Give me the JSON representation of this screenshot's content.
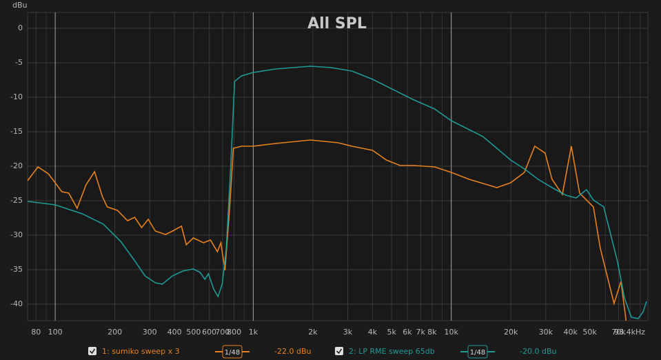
{
  "chart_data": {
    "type": "line",
    "title": "All SPL",
    "y_label": "dBu",
    "xscale": "log",
    "grid": true,
    "xlim": [
      72.5,
      98400
    ],
    "ylim": [
      -42.4,
      2.3
    ],
    "yticks": [
      0,
      -5,
      -10,
      -15,
      -20,
      -25,
      -30,
      -35,
      -40
    ],
    "xticks": [
      80,
      100,
      200,
      300,
      400,
      500,
      600,
      700,
      800,
      {
        "value": 1000,
        "label": "1k"
      },
      {
        "value": 2000,
        "label": "2k"
      },
      {
        "value": 3000,
        "label": "3k"
      },
      {
        "value": 4000,
        "label": "4k"
      },
      {
        "value": 5000,
        "label": "5k"
      },
      {
        "value": 6000,
        "label": "6k"
      },
      {
        "value": 7000,
        "label": "7k"
      },
      {
        "value": 8000,
        "label": "8k"
      },
      {
        "value": 10000,
        "label": "10k"
      },
      {
        "value": 20000,
        "label": "20k"
      },
      {
        "value": 30000,
        "label": "30k"
      },
      {
        "value": 40000,
        "label": "40k"
      },
      {
        "value": 50000,
        "label": "50k"
      },
      {
        "value": 70000,
        "label": "70k"
      },
      {
        "value": 98400,
        "label": "98.4kHz"
      }
    ],
    "x_major_gridlines": [
      100,
      1000,
      10000
    ],
    "x_minor_gridlines": [
      90,
      900,
      9000,
      60000,
      80000,
      90000
    ],
    "series": [
      {
        "name": "1: sumiko sweep x 3",
        "color": "#e8821e",
        "smoothing": "1/48",
        "level_label": "-22.0 dBu",
        "x": [
          72.5,
          81.8,
          92.3,
          100,
          108,
          117,
          129,
          143,
          158,
          173,
          183,
          206,
          232,
          252,
          273,
          295,
          320,
          361,
          391,
          434,
          459,
          498,
          561,
          608,
          659,
          686,
          720,
          761,
          793,
          873,
          1000,
          1303,
          1946,
          2683,
          3148,
          4008,
          4700,
          5522,
          6488,
          8244,
          10000,
          12320,
          16980,
          19940,
          23400,
          26400,
          29790,
          32270,
          36390,
          40390,
          44460,
          52220,
          56570,
          61260,
          66400,
          71950,
          76740
        ],
        "values": [
          -22.1,
          -20.1,
          -21.1,
          -22.4,
          -23.7,
          -23.9,
          -26.1,
          -22.7,
          -20.8,
          -24.4,
          -25.9,
          -26.4,
          -27.9,
          -27.4,
          -28.9,
          -27.7,
          -29.4,
          -29.9,
          -29.4,
          -28.7,
          -31.4,
          -30.4,
          -31.1,
          -30.7,
          -32.4,
          -31.1,
          -35.1,
          -25.9,
          -17.4,
          -17.1,
          -17.1,
          -16.7,
          -16.2,
          -16.6,
          -17.1,
          -17.7,
          -19.1,
          -19.9,
          -19.9,
          -20.1,
          -20.9,
          -21.9,
          -23.1,
          -22.4,
          -20.9,
          -17.1,
          -18.1,
          -21.9,
          -24.1,
          -17.1,
          -23.9,
          -25.9,
          -31.9,
          -35.9,
          -39.9,
          -36.7,
          -42.9
        ]
      },
      {
        "name": "2: LP RME sweep 65db",
        "color": "#1f9a96",
        "smoothing": "1/48",
        "level_label": "-20.0 dBu",
        "x": [
          72.5,
          100,
          137,
          175,
          214,
          252,
          284,
          320,
          347,
          391,
          441,
          498,
          539,
          570,
          594,
          633,
          664,
          697,
          731,
          767,
          805,
          873,
          1000,
          1303,
          1946,
          2476,
          3148,
          4008,
          5096,
          6488,
          8244,
          10000,
          12320,
          14450,
          16980,
          19940,
          23400,
          27480,
          32270,
          37840,
          42730,
          48190,
          52220,
          58880,
          63830,
          69180,
          74930,
          81190,
          87950,
          93070,
          96850
        ],
        "values": [
          -25.1,
          -25.6,
          -26.9,
          -28.4,
          -30.9,
          -33.7,
          -35.9,
          -36.9,
          -37.1,
          -35.9,
          -35.2,
          -34.9,
          -35.4,
          -36.4,
          -35.6,
          -37.9,
          -38.9,
          -37.1,
          -31.9,
          -20.9,
          -7.7,
          -6.9,
          -6.4,
          -5.9,
          -5.5,
          -5.7,
          -6.2,
          -7.4,
          -8.9,
          -10.4,
          -11.7,
          -13.4,
          -14.7,
          -15.7,
          -17.4,
          -19.1,
          -20.4,
          -21.9,
          -23.1,
          -24.2,
          -24.6,
          -23.4,
          -24.9,
          -25.9,
          -29.9,
          -33.9,
          -39.1,
          -41.9,
          -42.1,
          -41.1,
          -39.6
        ]
      }
    ]
  }
}
